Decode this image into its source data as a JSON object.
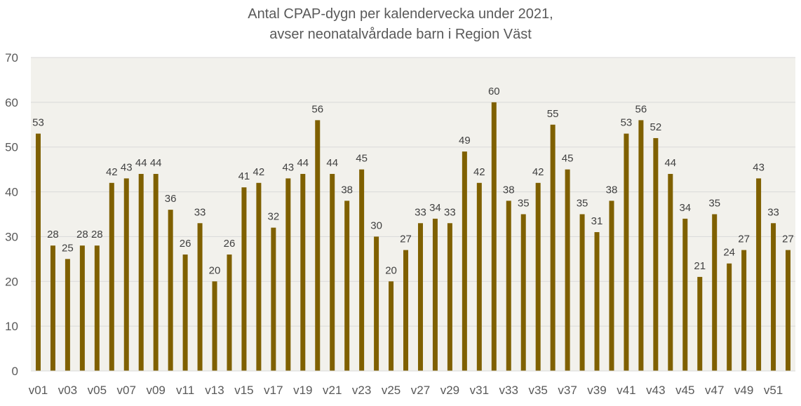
{
  "chart_data": {
    "type": "bar",
    "title": "Antal CPAP-dygn per kalendervecka under 2021,",
    "subtitle": "avser neonatalvårdade barn i Region Väst",
    "xlabel": "",
    "ylabel": "",
    "ylim": [
      0,
      70
    ],
    "yticks": [
      "0",
      "10",
      "20",
      "30",
      "40",
      "50",
      "60",
      "70"
    ],
    "grid": true,
    "legend": "none",
    "bar_color": "#7F6000",
    "plot_background": "#F2F1EC",
    "categories": [
      "v01",
      "v02",
      "v03",
      "v04",
      "v05",
      "v06",
      "v07",
      "v08",
      "v09",
      "v10",
      "v11",
      "v12",
      "v13",
      "v14",
      "v15",
      "v16",
      "v17",
      "v18",
      "v19",
      "v20",
      "v21",
      "v22",
      "v23",
      "v24",
      "v25",
      "v26",
      "v27",
      "v28",
      "v29",
      "v30",
      "v31",
      "v32",
      "v33",
      "v34",
      "v35",
      "v36",
      "v37",
      "v38",
      "v39",
      "v40",
      "v41",
      "v42",
      "v43",
      "v44",
      "v45",
      "v46",
      "v47",
      "v48",
      "v49",
      "v50",
      "v51",
      "v52"
    ],
    "x_tick_labels": [
      "v01",
      "",
      "v03",
      "",
      "v05",
      "",
      "v07",
      "",
      "v09",
      "",
      "v11",
      "",
      "v13",
      "",
      "v15",
      "",
      "v17",
      "",
      "v19",
      "",
      "v21",
      "",
      "v23",
      "",
      "v25",
      "",
      "v27",
      "",
      "v29",
      "",
      "v31",
      "",
      "v33",
      "",
      "v35",
      "",
      "v37",
      "",
      "v39",
      "",
      "v41",
      "",
      "v43",
      "",
      "v45",
      "",
      "v47",
      "",
      "v49",
      "",
      "v51",
      ""
    ],
    "values": [
      53,
      28,
      25,
      28,
      28,
      42,
      43,
      44,
      44,
      36,
      26,
      33,
      20,
      26,
      41,
      42,
      32,
      43,
      44,
      56,
      44,
      38,
      45,
      30,
      20,
      27,
      33,
      34,
      33,
      49,
      42,
      60,
      38,
      35,
      42,
      55,
      45,
      35,
      31,
      38,
      53,
      56,
      52,
      44,
      34,
      21,
      35,
      24,
      27,
      43,
      33,
      27
    ],
    "value_labels": [
      "53",
      "28",
      "25",
      "28",
      "28",
      "42",
      "43",
      "44",
      "44",
      "36",
      "26",
      "33",
      "20",
      "26",
      "41",
      "42",
      "32",
      "43",
      "44",
      "56",
      "44",
      "38",
      "45",
      "30",
      "20",
      "27",
      "33",
      "34",
      "33",
      "49",
      "42",
      "60",
      "38",
      "35",
      "42",
      "55",
      "45",
      "35",
      "31",
      "38",
      "53",
      "56",
      "52",
      "44",
      "34",
      "21",
      "35",
      "24",
      "27",
      "43",
      "33",
      "27"
    ]
  }
}
